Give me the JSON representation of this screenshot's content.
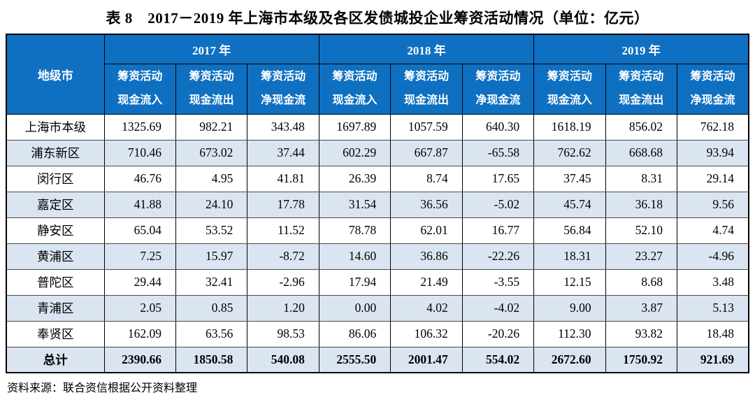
{
  "title": "表 8　2017－2019 年上海市本级及各区发债城投企业筹资活动情况（单位：亿元）",
  "source_note": "资料来源：联合资信根据公开资料整理",
  "colors": {
    "header_bg": "#0F70C2",
    "stripe_bg": "#DBE5F1",
    "header_text": "#FFFFFF",
    "outer_border": "#000000",
    "row_line": "#4A4A4A"
  },
  "table": {
    "corner_header": "地级市",
    "year_groups": [
      "2017 年",
      "2018 年",
      "2019 年"
    ],
    "sub_headers": [
      {
        "line1": "筹资活动",
        "line2": "现金流入"
      },
      {
        "line1": "筹资活动",
        "line2": "现金流出"
      },
      {
        "line1": "筹资活动",
        "line2": "净现金流"
      }
    ],
    "rows": [
      {
        "name": "上海市本级",
        "bold": false,
        "values": [
          "1325.69",
          "982.21",
          "343.48",
          "1697.89",
          "1057.59",
          "640.30",
          "1618.19",
          "856.02",
          "762.18"
        ]
      },
      {
        "name": "浦东新区",
        "bold": false,
        "values": [
          "710.46",
          "673.02",
          "37.44",
          "602.29",
          "667.87",
          "-65.58",
          "762.62",
          "668.68",
          "93.94"
        ]
      },
      {
        "name": "闵行区",
        "bold": false,
        "values": [
          "46.76",
          "4.95",
          "41.81",
          "26.39",
          "8.74",
          "17.65",
          "37.45",
          "8.31",
          "29.14"
        ]
      },
      {
        "name": "嘉定区",
        "bold": false,
        "values": [
          "41.88",
          "24.10",
          "17.78",
          "31.54",
          "36.56",
          "-5.02",
          "45.74",
          "36.18",
          "9.56"
        ]
      },
      {
        "name": "静安区",
        "bold": false,
        "values": [
          "65.04",
          "53.52",
          "11.52",
          "78.78",
          "62.01",
          "16.77",
          "56.84",
          "52.10",
          "4.74"
        ]
      },
      {
        "name": "黄浦区",
        "bold": false,
        "values": [
          "7.25",
          "15.97",
          "-8.72",
          "14.60",
          "36.86",
          "-22.26",
          "18.31",
          "23.27",
          "-4.96"
        ]
      },
      {
        "name": "普陀区",
        "bold": false,
        "values": [
          "29.44",
          "32.41",
          "-2.96",
          "17.94",
          "21.49",
          "-3.55",
          "12.15",
          "8.68",
          "3.48"
        ]
      },
      {
        "name": "青浦区",
        "bold": false,
        "values": [
          "2.05",
          "0.85",
          "1.20",
          "0.00",
          "4.02",
          "-4.02",
          "9.00",
          "3.87",
          "5.13"
        ]
      },
      {
        "name": "奉贤区",
        "bold": false,
        "values": [
          "162.09",
          "63.56",
          "98.53",
          "86.06",
          "106.32",
          "-20.26",
          "112.30",
          "93.82",
          "18.48"
        ]
      },
      {
        "name": "总计",
        "bold": true,
        "values": [
          "2390.66",
          "1850.58",
          "540.08",
          "2555.50",
          "2001.47",
          "554.02",
          "2672.60",
          "1750.92",
          "921.69"
        ]
      }
    ]
  }
}
